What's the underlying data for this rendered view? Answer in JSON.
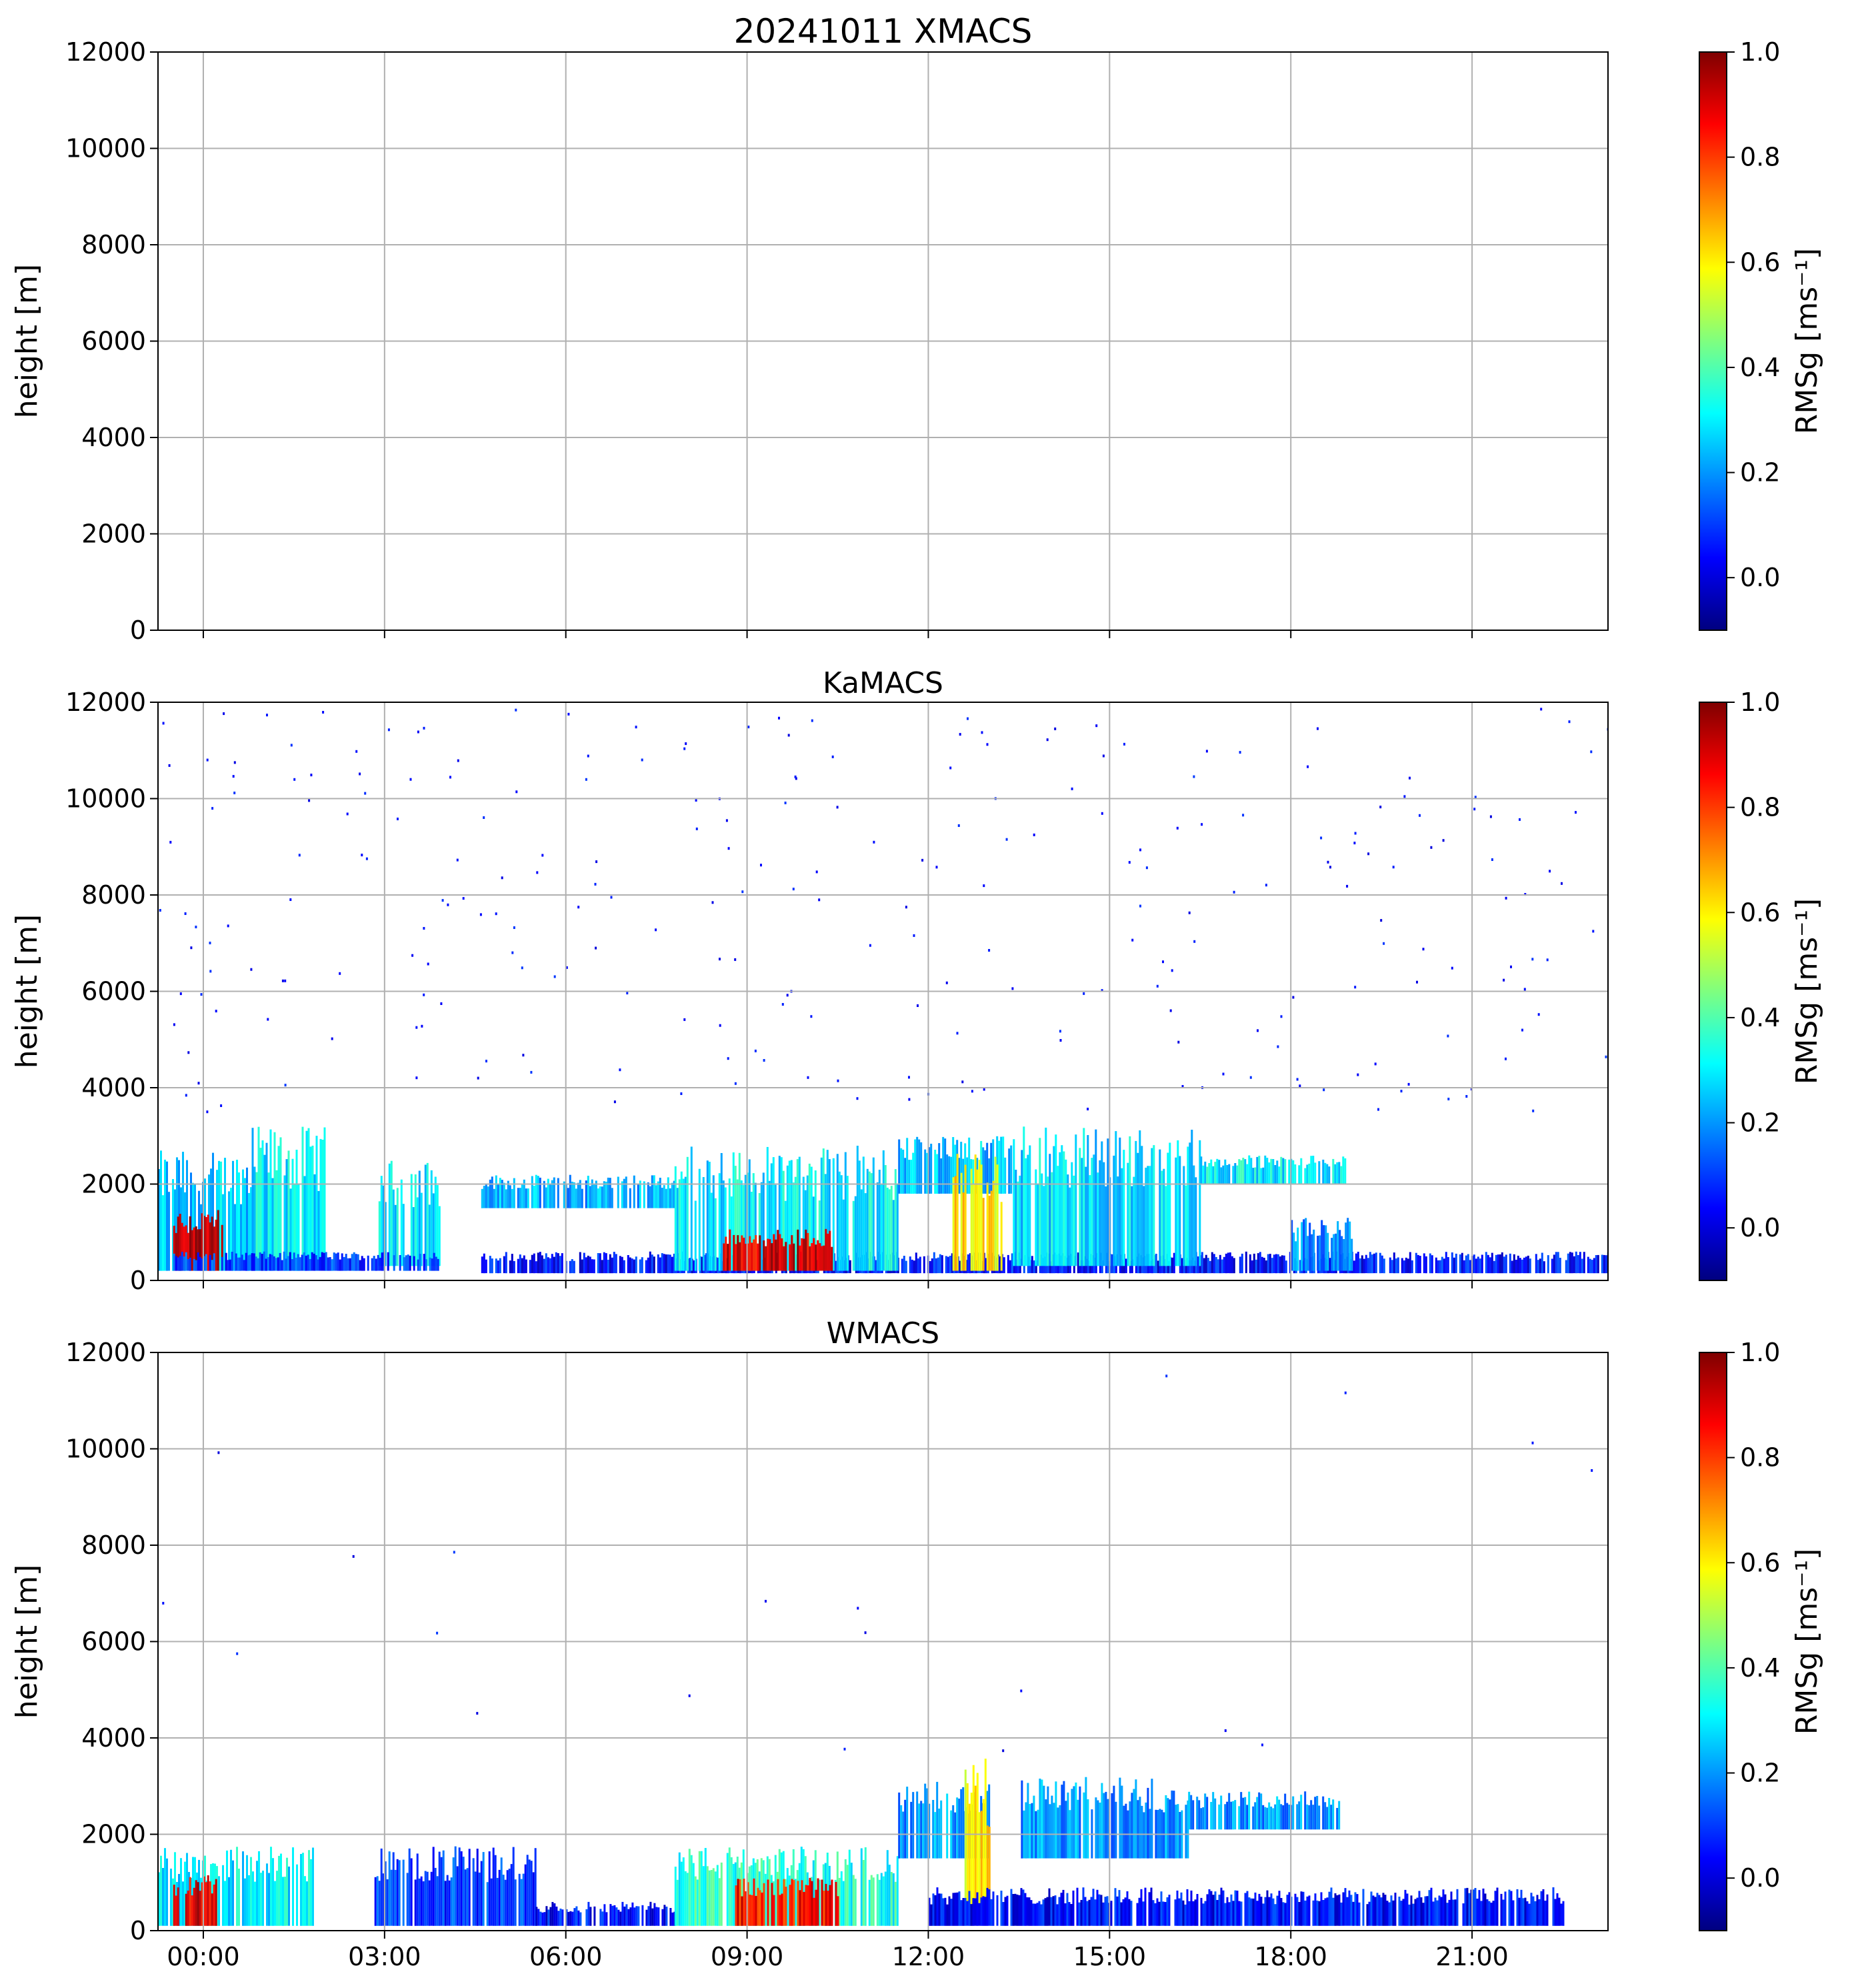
{
  "figure": {
    "background": "#ffffff",
    "grid_color": "#b0b0b0",
    "axis_color": "#000000"
  },
  "colorbar": {
    "label": "RMSg [ms⁻¹]",
    "min": -0.1,
    "max": 1.0,
    "ticks": [
      "0.0",
      "0.2",
      "0.4",
      "0.6",
      "0.8",
      "1.0"
    ],
    "tick_values": [
      0.0,
      0.2,
      0.4,
      0.6,
      0.8,
      1.0
    ],
    "colormap": "jet",
    "stops": [
      "#00007f",
      "#0000ff",
      "#007fff",
      "#00ffff",
      "#7fff7f",
      "#ffff00",
      "#ff7f00",
      "#ff0000",
      "#7f0000"
    ]
  },
  "chart_data": [
    {
      "type": "heatmap",
      "title": "20241011 XMACS",
      "xlabel": "",
      "ylabel": "height [m]",
      "xlim_hours": [
        -0.75,
        23.25
      ],
      "ylim": [
        0,
        12000
      ],
      "yticks": [
        "0",
        "2000",
        "4000",
        "6000",
        "8000",
        "10000",
        "12000"
      ],
      "ytick_values": [
        0,
        2000,
        4000,
        6000,
        8000,
        10000,
        12000
      ],
      "xticks": [],
      "xtick_values": [
        0,
        3,
        6,
        9,
        12,
        15,
        18,
        21
      ],
      "grid": true,
      "echo_regions": []
    },
    {
      "type": "heatmap",
      "title": "KaMACS",
      "xlabel": "",
      "ylabel": "height [m]",
      "xlim_hours": [
        -0.75,
        23.25
      ],
      "ylim": [
        0,
        12000
      ],
      "yticks": [
        "0",
        "2000",
        "4000",
        "6000",
        "8000",
        "10000",
        "12000"
      ],
      "ytick_values": [
        0,
        2000,
        4000,
        6000,
        8000,
        10000,
        12000
      ],
      "xticks": [],
      "xtick_values": [
        0,
        3,
        6,
        9,
        12,
        15,
        18,
        21
      ],
      "grid": true,
      "noise_points": 260,
      "echo_regions": [
        {
          "t0": -0.75,
          "t1": 0.8,
          "h0": 200,
          "h1": 2700,
          "rmsg": 0.25
        },
        {
          "t0": -0.5,
          "t1": 0.3,
          "h0": 200,
          "h1": 1500,
          "rmsg": 0.95
        },
        {
          "t0": 0.8,
          "t1": 2.0,
          "h0": 200,
          "h1": 3200,
          "rmsg": 0.3
        },
        {
          "t0": 2.9,
          "t1": 3.9,
          "h0": 300,
          "h1": 2500,
          "rmsg": 0.3
        },
        {
          "t0": -0.5,
          "t1": 3.9,
          "h0": 200,
          "h1": 600,
          "rmsg": 0.1
        },
        {
          "t0": 4.6,
          "t1": 7.8,
          "h0": 1500,
          "h1": 2200,
          "rmsg": 0.22
        },
        {
          "t0": 4.6,
          "t1": 23.25,
          "h0": 150,
          "h1": 600,
          "rmsg": 0.05
        },
        {
          "t0": 7.8,
          "t1": 11.5,
          "h0": 200,
          "h1": 2800,
          "rmsg": 0.3
        },
        {
          "t0": 8.6,
          "t1": 10.4,
          "h0": 200,
          "h1": 1100,
          "rmsg": 0.9
        },
        {
          "t0": 11.5,
          "t1": 13.4,
          "h0": 1800,
          "h1": 3000,
          "rmsg": 0.25
        },
        {
          "t0": 12.4,
          "t1": 13.2,
          "h0": 200,
          "h1": 2700,
          "rmsg": 0.6
        },
        {
          "t0": 13.4,
          "t1": 16.5,
          "h0": 300,
          "h1": 3200,
          "rmsg": 0.28
        },
        {
          "t0": 16.5,
          "t1": 18.9,
          "h0": 2000,
          "h1": 2600,
          "rmsg": 0.3
        },
        {
          "t0": 18.0,
          "t1": 19.0,
          "h0": 200,
          "h1": 1300,
          "rmsg": 0.2
        }
      ]
    },
    {
      "type": "heatmap",
      "title": "WMACS",
      "xlabel": "",
      "ylabel": "height [m]",
      "xlim_hours": [
        -0.75,
        23.25
      ],
      "ylim": [
        0,
        12000
      ],
      "yticks": [
        "0",
        "2000",
        "4000",
        "6000",
        "8000",
        "10000",
        "12000"
      ],
      "ytick_values": [
        0,
        2000,
        4000,
        6000,
        8000,
        10000,
        12000
      ],
      "xticks": [
        "00:00",
        "03:00",
        "06:00",
        "09:00",
        "12:00",
        "15:00",
        "18:00",
        "21:00"
      ],
      "xtick_values": [
        0,
        3,
        6,
        9,
        12,
        15,
        18,
        21
      ],
      "grid": true,
      "noise_points": 20,
      "echo_regions": [
        {
          "t0": -0.75,
          "t1": 1.8,
          "h0": 100,
          "h1": 1750,
          "rmsg": 0.3
        },
        {
          "t0": -0.5,
          "t1": 0.2,
          "h0": 100,
          "h1": 1200,
          "rmsg": 0.9
        },
        {
          "t0": 2.8,
          "t1": 5.5,
          "h0": 100,
          "h1": 1750,
          "rmsg": 0.1
        },
        {
          "t0": 5.5,
          "t1": 7.8,
          "h0": 100,
          "h1": 600,
          "rmsg": 0.05
        },
        {
          "t0": 7.8,
          "t1": 11.5,
          "h0": 100,
          "h1": 1750,
          "rmsg": 0.35
        },
        {
          "t0": 8.8,
          "t1": 10.5,
          "h0": 100,
          "h1": 1100,
          "rmsg": 0.85
        },
        {
          "t0": 11.5,
          "t1": 13.0,
          "h0": 1500,
          "h1": 3100,
          "rmsg": 0.2
        },
        {
          "t0": 12.6,
          "t1": 13.0,
          "h0": 300,
          "h1": 3600,
          "rmsg": 0.6
        },
        {
          "t0": 13.5,
          "t1": 16.3,
          "h0": 1500,
          "h1": 3200,
          "rmsg": 0.2
        },
        {
          "t0": 16.3,
          "t1": 18.8,
          "h0": 2100,
          "h1": 2900,
          "rmsg": 0.2
        },
        {
          "t0": 12.0,
          "t1": 22.5,
          "h0": 100,
          "h1": 900,
          "rmsg": 0.05
        }
      ]
    }
  ]
}
